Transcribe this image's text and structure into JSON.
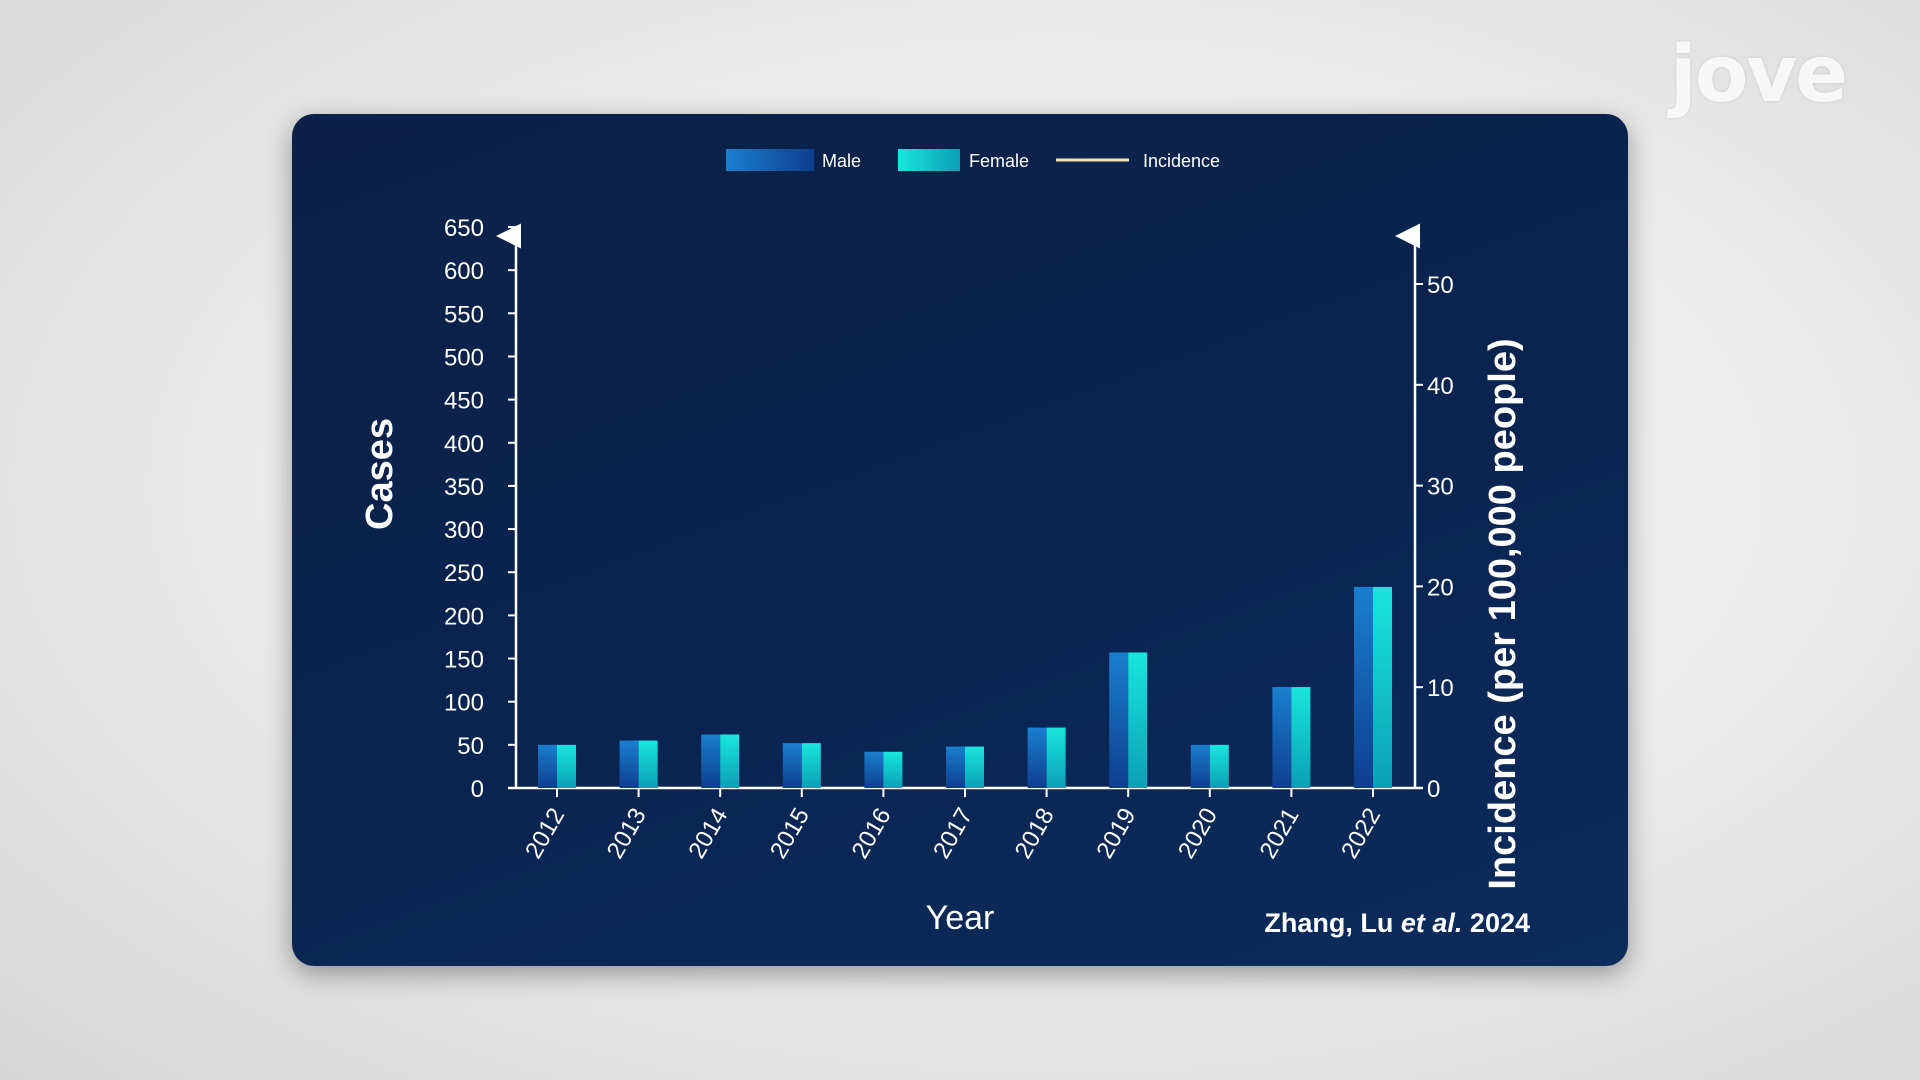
{
  "watermark": "jove",
  "citation_prefix": "Zhang, Lu ",
  "citation_italic": "et al.",
  "citation_year": " 2024",
  "colors": {
    "male_top": "#1a7fcf",
    "male_bottom": "#0e3e8f",
    "female_top": "#19e6dc",
    "female_bottom": "#0b9fb6",
    "incidence": "#f4e3a6",
    "axis": "#ffffff",
    "text": "#ffffff"
  },
  "chart_data": {
    "type": "bar",
    "categories": [
      "2012",
      "2013",
      "2014",
      "2015",
      "2016",
      "2017",
      "2018",
      "2019",
      "2020",
      "2021",
      "2022"
    ],
    "series": [
      {
        "name": "Male",
        "values": [
          50,
          55,
          62,
          52,
          42,
          48,
          70,
          157,
          50,
          117,
          233
        ]
      },
      {
        "name": "Female",
        "values": [
          50,
          55,
          62,
          52,
          42,
          48,
          70,
          157,
          50,
          117,
          233
        ]
      }
    ],
    "legend": [
      "Male",
      "Female",
      "Incidence"
    ],
    "legend_position": "top-center",
    "xlabel": "Year",
    "ylabel": "Cases",
    "ylabel_right": "Incidence (per 100,000 people)",
    "ylim": [
      0,
      650
    ],
    "yticks": [
      0,
      50,
      100,
      150,
      200,
      250,
      300,
      350,
      400,
      450,
      500,
      550,
      600,
      650
    ],
    "ylim_right": [
      0,
      50
    ],
    "yticks_right": [
      0,
      10,
      20,
      30,
      40,
      50
    ],
    "grid": false
  }
}
